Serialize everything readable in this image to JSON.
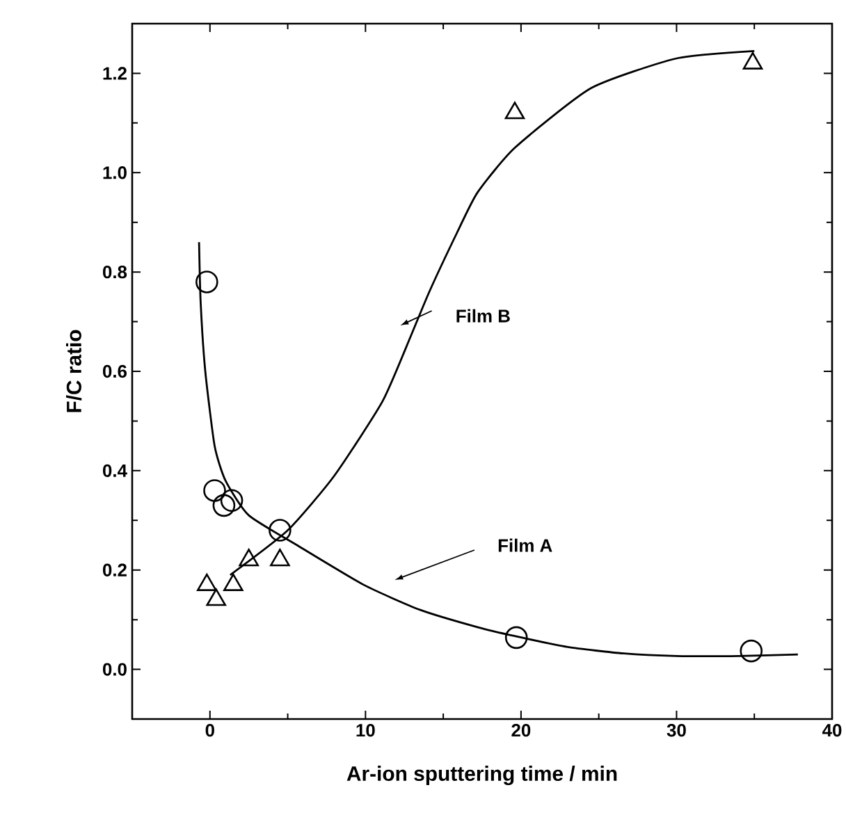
{
  "chart_data": {
    "type": "scatter",
    "xlabel": "Ar-ion sputtering time / min",
    "ylabel": "F/C ratio",
    "xlim": [
      -5,
      40
    ],
    "ylim": [
      -0.1,
      1.3
    ],
    "xticks": [
      0,
      10,
      20,
      30,
      40
    ],
    "yticks": [
      {
        "value": 0,
        "label": "0.0"
      },
      {
        "value": 0.2,
        "label": "0.2"
      },
      {
        "value": 0.4,
        "label": "0.4"
      },
      {
        "value": 0.6,
        "label": "0.6"
      },
      {
        "value": 0.8,
        "label": "0.8"
      },
      {
        "value": 1,
        "label": "1.0"
      },
      {
        "value": 1.2,
        "label": "1.2"
      }
    ],
    "grid": false,
    "legend": false,
    "series": [
      {
        "marker": "circle",
        "color": "#000000",
        "x": [
          -0.2,
          0.3,
          0.9,
          1.4,
          4.5,
          19.7,
          34.8
        ],
        "values": [
          0.78,
          0.36,
          0.33,
          0.34,
          0.28,
          0.064,
          0.037
        ]
      },
      {
        "marker": "triangle",
        "color": "#000000",
        "x": [
          -0.2,
          0.4,
          1.5,
          2.5,
          4.5,
          19.6,
          34.9
        ],
        "values": [
          0.17,
          0.14,
          0.17,
          0.22,
          0.22,
          1.12,
          1.22
        ]
      },
      {
        "type": "line",
        "marker": "none",
        "line_style": "solid",
        "color": "#000000",
        "x": [
          -0.7,
          -0.6,
          -0.3,
          0.3,
          1.0,
          2.5,
          5.6,
          9.9,
          13.5,
          17.2,
          19.6,
          23,
          26.6,
          30,
          34,
          37.8
        ],
        "values": [
          0.86,
          0.74,
          0.6,
          0.45,
          0.38,
          0.31,
          0.25,
          0.17,
          0.12,
          0.085,
          0.067,
          0.045,
          0.032,
          0.027,
          0.027,
          0.03
        ]
      },
      {
        "type": "line",
        "marker": "none",
        "line_style": "solid",
        "color": "#000000",
        "x": [
          1.3,
          5,
          8,
          11.1,
          12.9,
          14.1,
          15.9,
          17.2,
          19.6,
          24.5,
          30,
          35
        ],
        "values": [
          0.19,
          0.28,
          0.39,
          0.54,
          0.67,
          0.76,
          0.88,
          0.96,
          1.05,
          1.17,
          1.23,
          1.245
        ]
      }
    ],
    "annotations": [
      "Film B",
      "Film A"
    ]
  }
}
